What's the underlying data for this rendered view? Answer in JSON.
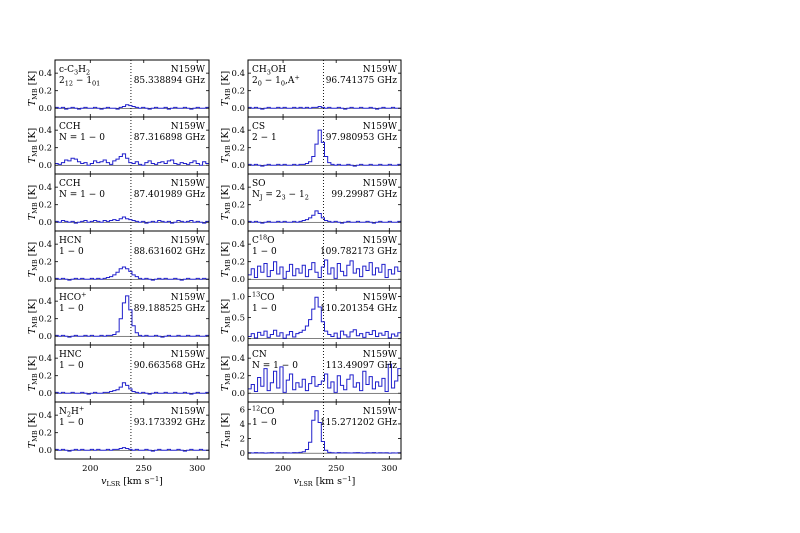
{
  "chart_data": {
    "type": "step-line",
    "x_axis": {
      "label": "v_LSR [km s^-1]",
      "range": [
        167,
        311
      ],
      "ticks": [
        200,
        250,
        300
      ]
    },
    "y_axis_label": "T_MB [K]",
    "source_label": "N159W",
    "reference_velocity": 238,
    "series_color": "#2020cc",
    "panels": [
      {
        "id": "c3h2",
        "column": 0,
        "row": 0,
        "molecule": "c-C3H2",
        "transition": "2_12 - 1_01",
        "frequency": "85.338894 GHz",
        "ylim": [
          -0.1,
          0.55
        ],
        "yticks": [
          0.0,
          0.2,
          0.4
        ],
        "values": [
          0.01,
          0.0,
          0.01,
          -0.01,
          0.0,
          0.01,
          0.0,
          -0.01,
          0.0,
          0.01,
          0.0,
          0.0,
          0.01,
          0.0,
          -0.01,
          0.0,
          0.01,
          0.0,
          0.0,
          -0.01,
          0.01,
          0.02,
          0.04,
          0.03,
          0.02,
          0.01,
          0.0,
          0.01,
          0.0,
          -0.01,
          0.0,
          0.01,
          0.0,
          0.0,
          0.01,
          -0.01,
          0.0,
          0.01,
          0.0,
          0.0,
          0.01,
          0.0,
          -0.01,
          0.0,
          0.01,
          0.0,
          0.0,
          0.01
        ]
      },
      {
        "id": "cch1",
        "column": 0,
        "row": 1,
        "molecule": "CCH",
        "transition": "N = 1 - 0",
        "frequency": "87.316898 GHz",
        "ylim": [
          -0.1,
          0.55
        ],
        "yticks": [
          0.0,
          0.2,
          0.4
        ],
        "values": [
          0.02,
          0.01,
          0.03,
          0.06,
          0.05,
          0.08,
          0.07,
          0.04,
          0.02,
          0.03,
          0.0,
          0.02,
          0.05,
          0.03,
          0.04,
          0.06,
          0.03,
          0.01,
          0.05,
          0.07,
          0.1,
          0.13,
          0.08,
          0.03,
          0.02,
          0.04,
          0.01,
          0.0,
          0.03,
          0.05,
          0.02,
          0.01,
          0.03,
          0.04,
          0.02,
          0.05,
          0.06,
          0.02,
          0.01,
          0.03,
          0.02,
          0.01,
          0.03,
          0.05,
          0.02,
          0.0,
          0.04,
          0.02
        ]
      },
      {
        "id": "cch2",
        "column": 0,
        "row": 2,
        "molecule": "CCH",
        "transition": "N = 1 - 0",
        "frequency": "87.401989 GHz",
        "ylim": [
          -0.1,
          0.55
        ],
        "yticks": [
          0.0,
          0.2,
          0.4
        ],
        "values": [
          0.01,
          0.0,
          0.02,
          0.01,
          0.0,
          0.01,
          -0.01,
          0.0,
          0.01,
          0.02,
          0.0,
          0.01,
          0.02,
          0.01,
          0.0,
          0.02,
          0.01,
          0.02,
          0.03,
          0.02,
          0.04,
          0.06,
          0.04,
          0.03,
          0.02,
          0.01,
          0.0,
          0.01,
          -0.01,
          0.0,
          0.01,
          0.0,
          0.02,
          0.01,
          0.0,
          0.01,
          -0.01,
          0.0,
          0.02,
          0.01,
          0.0,
          0.01,
          0.02,
          0.0,
          0.01,
          0.0,
          -0.01,
          0.01
        ]
      },
      {
        "id": "hcn",
        "column": 0,
        "row": 3,
        "molecule": "HCN",
        "transition": "1 - 0",
        "frequency": "88.631602 GHz",
        "ylim": [
          -0.1,
          0.55
        ],
        "yticks": [
          0.0,
          0.2,
          0.4
        ],
        "values": [
          0.01,
          0.0,
          0.01,
          0.0,
          -0.01,
          0.0,
          0.01,
          0.0,
          0.01,
          0.0,
          0.0,
          0.01,
          0.0,
          0.01,
          0.0,
          0.01,
          0.02,
          0.03,
          0.05,
          0.08,
          0.12,
          0.14,
          0.12,
          0.09,
          0.05,
          0.03,
          0.01,
          0.0,
          0.01,
          0.0,
          -0.01,
          0.0,
          0.01,
          0.0,
          0.01,
          0.0,
          0.0,
          0.01,
          0.0,
          -0.01,
          0.0,
          0.01,
          0.0,
          0.0,
          0.01,
          0.0,
          0.01,
          0.0
        ]
      },
      {
        "id": "hcop",
        "column": 0,
        "row": 4,
        "molecule": "HCO+",
        "transition": "1 - 0",
        "frequency": "89.188525 GHz",
        "ylim": [
          -0.1,
          0.55
        ],
        "yticks": [
          0.0,
          0.2,
          0.4
        ],
        "values": [
          0.01,
          0.0,
          0.01,
          0.0,
          -0.01,
          0.0,
          0.01,
          0.0,
          0.0,
          0.01,
          0.0,
          0.01,
          0.0,
          0.0,
          0.01,
          0.0,
          0.01,
          0.01,
          0.02,
          0.05,
          0.2,
          0.38,
          0.46,
          0.3,
          0.12,
          0.04,
          0.01,
          0.0,
          0.01,
          0.0,
          0.0,
          0.01,
          0.0,
          -0.01,
          0.0,
          0.01,
          0.0,
          0.0,
          0.01,
          0.0,
          0.0,
          0.01,
          0.0,
          0.0,
          0.01,
          0.0,
          0.0,
          0.01
        ]
      },
      {
        "id": "hnc",
        "column": 0,
        "row": 5,
        "molecule": "HNC",
        "transition": "1 - 0",
        "frequency": "90.663568 GHz",
        "ylim": [
          -0.1,
          0.55
        ],
        "yticks": [
          0.0,
          0.2,
          0.4
        ],
        "values": [
          0.01,
          0.0,
          0.01,
          0.0,
          0.0,
          0.01,
          0.0,
          0.0,
          0.01,
          0.0,
          -0.01,
          0.0,
          0.01,
          0.0,
          0.0,
          0.01,
          0.01,
          0.02,
          0.03,
          0.04,
          0.07,
          0.12,
          0.09,
          0.05,
          0.02,
          0.01,
          0.0,
          0.01,
          0.0,
          -0.01,
          0.0,
          0.01,
          0.0,
          0.0,
          0.01,
          0.0,
          0.0,
          0.01,
          0.0,
          0.0,
          0.01,
          0.0,
          -0.01,
          0.0,
          0.01,
          0.0,
          0.0,
          0.01
        ]
      },
      {
        "id": "n2hp",
        "column": 0,
        "row": 6,
        "molecule": "N2H+",
        "transition": "1 - 0",
        "frequency": "93.173392 GHz",
        "ylim": [
          -0.1,
          0.55
        ],
        "yticks": [
          0.0,
          0.2,
          0.4
        ],
        "values": [
          0.01,
          0.0,
          0.01,
          0.0,
          -0.01,
          0.0,
          0.01,
          0.0,
          0.01,
          0.0,
          0.0,
          0.01,
          0.0,
          0.01,
          0.0,
          0.0,
          0.01,
          0.0,
          0.01,
          0.01,
          0.02,
          0.03,
          0.02,
          0.01,
          0.0,
          0.01,
          0.0,
          0.0,
          0.01,
          0.0,
          -0.01,
          0.0,
          0.01,
          0.0,
          0.0,
          0.01,
          0.0,
          0.0,
          0.01,
          0.0,
          -0.01,
          0.0,
          0.01,
          0.0,
          0.0,
          0.01,
          0.0,
          0.0
        ]
      },
      {
        "id": "ch3oh",
        "column": 1,
        "row": 0,
        "molecule": "CH3OH",
        "transition": "2_0 - 1_0,A+",
        "frequency": "96.741375 GHz",
        "ylim": [
          -0.1,
          0.55
        ],
        "yticks": [
          0.0,
          0.2,
          0.4
        ],
        "values": [
          0.01,
          0.0,
          0.01,
          0.0,
          -0.01,
          0.0,
          0.01,
          0.0,
          0.0,
          0.01,
          0.0,
          0.01,
          0.0,
          0.0,
          0.01,
          0.0,
          0.01,
          0.0,
          0.01,
          0.0,
          0.01,
          0.01,
          0.02,
          0.01,
          0.0,
          0.01,
          0.0,
          0.0,
          0.01,
          0.0,
          -0.01,
          0.0,
          0.01,
          0.0,
          0.0,
          0.01,
          0.0,
          0.0,
          0.01,
          0.0,
          -0.01,
          0.0,
          0.01,
          0.0,
          0.0,
          0.01,
          0.0,
          0.0
        ]
      },
      {
        "id": "cs",
        "column": 1,
        "row": 1,
        "molecule": "CS",
        "transition": "2 - 1",
        "frequency": "97.980953 GHz",
        "ylim": [
          -0.1,
          0.55
        ],
        "yticks": [
          0.0,
          0.2,
          0.4
        ],
        "values": [
          0.01,
          0.0,
          0.01,
          0.0,
          -0.01,
          0.0,
          0.01,
          0.0,
          0.0,
          0.01,
          0.0,
          0.01,
          0.0,
          0.0,
          0.01,
          0.0,
          0.01,
          0.01,
          0.02,
          0.04,
          0.1,
          0.24,
          0.4,
          0.26,
          0.1,
          0.03,
          0.01,
          0.0,
          0.01,
          0.0,
          0.0,
          0.01,
          0.0,
          -0.01,
          0.0,
          0.01,
          0.0,
          0.0,
          0.01,
          0.0,
          0.0,
          0.01,
          0.0,
          0.0,
          0.01,
          0.0,
          0.0,
          0.01
        ]
      },
      {
        "id": "so",
        "column": 1,
        "row": 2,
        "molecule": "SO",
        "transition": "N_J = 2_3 - 1_2",
        "frequency": "99.29987 GHz",
        "ylim": [
          -0.1,
          0.55
        ],
        "yticks": [
          0.0,
          0.2,
          0.4
        ],
        "values": [
          0.01,
          0.0,
          0.01,
          0.0,
          -0.01,
          0.0,
          0.01,
          0.0,
          0.0,
          0.01,
          0.0,
          0.01,
          0.0,
          0.0,
          0.01,
          0.0,
          0.01,
          0.02,
          0.03,
          0.05,
          0.08,
          0.13,
          0.1,
          0.05,
          0.02,
          0.01,
          0.0,
          0.01,
          0.0,
          -0.01,
          0.0,
          0.01,
          0.0,
          0.0,
          0.01,
          0.0,
          0.0,
          0.01,
          0.0,
          -0.01,
          0.0,
          0.01,
          0.0,
          0.0,
          0.01,
          0.0,
          0.0,
          0.01
        ]
      },
      {
        "id": "c18o",
        "column": 1,
        "row": 3,
        "molecule": "C18O",
        "transition": "1 - 0",
        "frequency": "109.782173 GHz",
        "ylim": [
          -0.1,
          0.55
        ],
        "yticks": [
          0.0,
          0.2,
          0.4
        ],
        "values": [
          0.05,
          0.12,
          0.02,
          0.15,
          0.08,
          0.18,
          0.03,
          0.1,
          0.2,
          0.06,
          0.14,
          0.01,
          0.09,
          0.17,
          0.04,
          0.12,
          0.07,
          0.16,
          0.03,
          0.11,
          0.19,
          0.08,
          0.02,
          0.14,
          0.22,
          0.06,
          0.13,
          0.01,
          0.18,
          0.09,
          0.04,
          0.16,
          0.21,
          0.07,
          0.12,
          0.03,
          0.15,
          0.1,
          0.19,
          0.05,
          0.13,
          0.08,
          0.17,
          0.02,
          0.11,
          0.06,
          0.14,
          0.09
        ]
      },
      {
        "id": "13co",
        "column": 1,
        "row": 4,
        "molecule": "13CO",
        "transition": "1 - 0",
        "frequency": "110.201354 GHz",
        "ylim": [
          -0.15,
          1.2
        ],
        "yticks": [
          0.0,
          0.5,
          1.0
        ],
        "values": [
          0.05,
          0.12,
          0.02,
          0.15,
          0.08,
          0.18,
          0.03,
          0.1,
          0.2,
          0.06,
          0.14,
          0.01,
          0.09,
          0.17,
          0.04,
          0.12,
          0.15,
          0.2,
          0.3,
          0.45,
          0.7,
          0.98,
          0.75,
          0.4,
          0.18,
          0.1,
          0.05,
          0.13,
          0.01,
          0.18,
          0.09,
          0.04,
          0.16,
          0.21,
          0.07,
          0.12,
          0.03,
          0.15,
          0.1,
          0.19,
          0.05,
          0.13,
          0.08,
          0.17,
          0.02,
          0.11,
          0.06,
          0.14
        ]
      },
      {
        "id": "cn",
        "column": 1,
        "row": 5,
        "molecule": "CN",
        "transition": "N = 1 - 0",
        "frequency": "113.49097 GHz",
        "ylim": [
          -0.1,
          0.55
        ],
        "yticks": [
          0.0,
          0.2,
          0.4
        ],
        "values": [
          0.05,
          0.1,
          0.02,
          0.18,
          0.08,
          0.28,
          0.03,
          0.12,
          0.25,
          0.06,
          0.3,
          0.01,
          0.15,
          0.22,
          0.04,
          0.12,
          0.07,
          0.16,
          0.03,
          0.11,
          0.19,
          0.08,
          0.1,
          0.14,
          0.22,
          0.06,
          0.13,
          0.01,
          0.2,
          0.09,
          0.04,
          0.16,
          0.21,
          0.07,
          0.12,
          0.03,
          0.25,
          0.1,
          0.19,
          0.05,
          0.13,
          0.08,
          0.17,
          0.02,
          0.33,
          0.06,
          0.14,
          0.28
        ]
      },
      {
        "id": "12co",
        "column": 1,
        "row": 6,
        "molecule": "12CO",
        "transition": "1 - 0",
        "frequency": "115.271202 GHz",
        "ylim": [
          -0.8,
          7.0
        ],
        "yticks": [
          0,
          2,
          4,
          6
        ],
        "values": [
          0.05,
          0.02,
          0.08,
          0.03,
          0.06,
          0.01,
          0.04,
          0.07,
          0.02,
          0.05,
          0.03,
          0.06,
          0.04,
          0.02,
          0.08,
          0.05,
          0.1,
          0.2,
          0.5,
          1.5,
          4.5,
          5.8,
          4.2,
          1.6,
          0.4,
          0.1,
          0.05,
          0.02,
          0.07,
          0.03,
          0.06,
          0.04,
          0.02,
          0.05,
          0.08,
          0.03,
          0.01,
          0.06,
          0.04,
          0.07,
          0.02,
          0.05,
          0.03,
          0.06,
          0.01,
          0.04,
          0.02,
          0.05
        ]
      }
    ]
  }
}
